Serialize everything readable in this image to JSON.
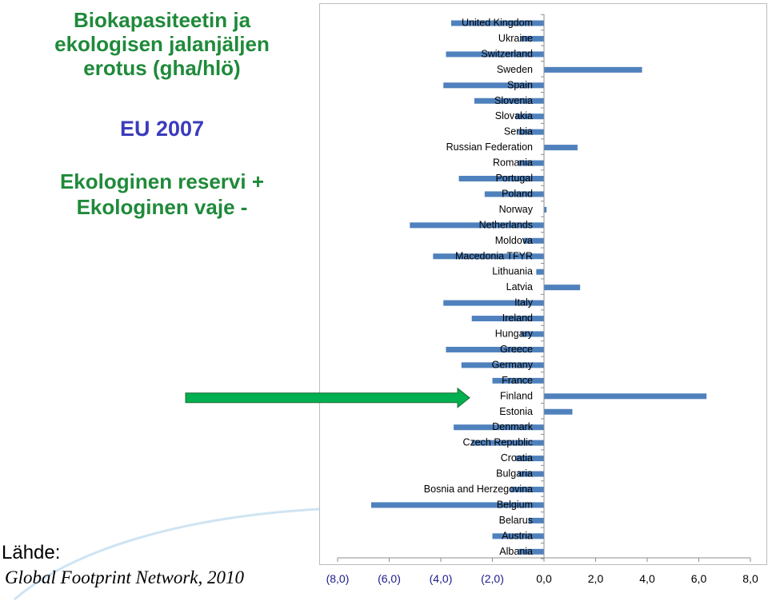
{
  "left_panel": {
    "title_lines": [
      "Biokapasiteetin ja",
      "ekologisen jalanjäljen",
      "erotus (gha/hlö)"
    ],
    "eu_label": "EU 2007",
    "reserve_line": "Ekologinen reservi +",
    "deficit_line": "Ekologinen vaje -",
    "source_label": "Lähde:",
    "source_text": "Global Footprint Network, 2010"
  },
  "colors": {
    "title_green": "#1f8a3a",
    "eu_blue": "#3b3bbd",
    "bar_blue": "#4f81bd",
    "arrow_green": "#00b050"
  },
  "arrow": {
    "points_to": "Finland"
  },
  "chart_data": {
    "type": "bar",
    "orientation": "horizontal",
    "categories": [
      "United Kingdom",
      "Ukraine",
      "Switzerland",
      "Sweden",
      "Spain",
      "Slovenia",
      "Slovakia",
      "Serbia",
      "Russian Federation",
      "Romania",
      "Portugal",
      "Poland",
      "Norway",
      "Netherlands",
      "Moldova",
      "Macedonia TFYR",
      "Lithuania",
      "Latvia",
      "Italy",
      "Ireland",
      "Hungary",
      "Greece",
      "Germany",
      "France",
      "Finland",
      "Estonia",
      "Denmark",
      "Czech Republic",
      "Croatia",
      "Bulgaria",
      "Bosnia and Herzegovina",
      "Belgium",
      "Belarus",
      "Austria",
      "Albania"
    ],
    "values": [
      -3.6,
      -0.9,
      -3.8,
      3.8,
      -3.9,
      -2.7,
      -1.1,
      -1.0,
      1.3,
      -1.0,
      -3.3,
      -2.3,
      0.1,
      -5.2,
      -0.8,
      -4.3,
      -0.3,
      1.4,
      -3.9,
      -2.8,
      -0.9,
      -3.8,
      -3.2,
      -2.0,
      6.3,
      1.1,
      -3.5,
      -2.8,
      -1.1,
      -1.0,
      -1.3,
      -6.7,
      -0.6,
      -2.0,
      -1.0
    ],
    "xlim": [
      -8,
      8
    ],
    "x_ticks": [
      "(8,0)",
      "(6,0)",
      "(4,0)",
      "(2,0)",
      "0,0",
      "2,0",
      "4,0",
      "6,0",
      "8,0"
    ],
    "title": "",
    "xlabel": "",
    "ylabel": "",
    "grid": false,
    "legend": "none"
  }
}
